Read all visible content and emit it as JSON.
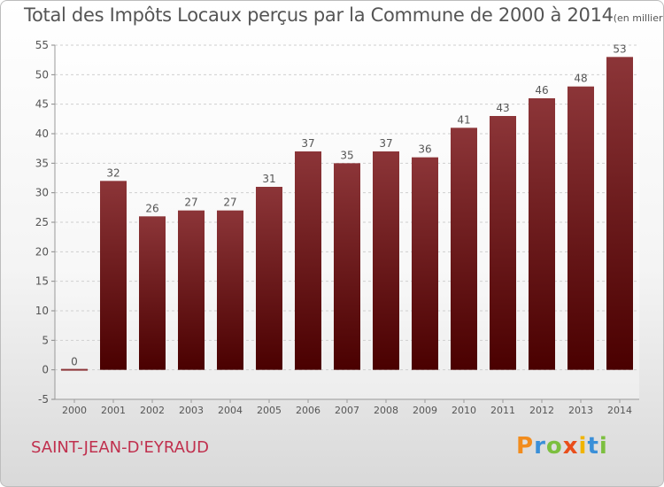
{
  "title": {
    "main": "Total des Impôts Locaux perçus par la Commune de 2000 à 2014",
    "sub": "(en milliers d'€)"
  },
  "commune": "SAINT-JEAN-D'EYRAUD",
  "logo": {
    "letters": [
      "P",
      "r",
      "o",
      "x",
      "i",
      "t",
      "i"
    ],
    "colors": [
      "#f28c1d",
      "#3a8fd8",
      "#7cbf3f",
      "#e94e1b",
      "#f0b400",
      "#3a8fd8",
      "#7cbf3f"
    ]
  },
  "colors": {
    "bar_top": "#8c3538",
    "bar_bottom": "#4a0000",
    "grid": "#cfcfcf",
    "axis_text": "#555555"
  },
  "chart_data": {
    "type": "bar",
    "categories": [
      "2000",
      "2001",
      "2002",
      "2003",
      "2004",
      "2005",
      "2006",
      "2007",
      "2008",
      "2009",
      "2010",
      "2011",
      "2012",
      "2013",
      "2014"
    ],
    "values": [
      0,
      32,
      26,
      27,
      27,
      31,
      37,
      35,
      37,
      36,
      41,
      43,
      46,
      48,
      53
    ],
    "ylim": [
      -5,
      55
    ],
    "yticks": [
      -5,
      0,
      5,
      10,
      15,
      20,
      25,
      30,
      35,
      40,
      45,
      50,
      55
    ],
    "grid": true,
    "data_labels": true
  }
}
